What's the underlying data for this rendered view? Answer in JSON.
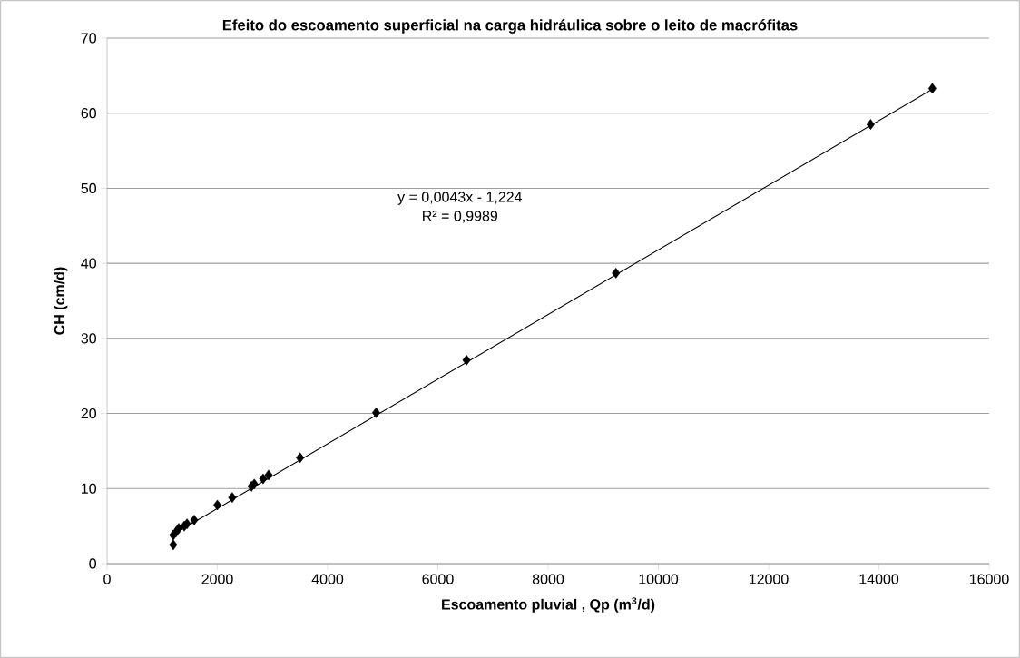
{
  "chart_data": {
    "type": "scatter",
    "title": "Efeito do escoamento superficial na carga hidráulica sobre o leito de macrófitas",
    "xlabel": "Escoamento pluvial , Qp (m$^{3}$/d)",
    "ylabel": "CH (cm/d)",
    "annotations": [
      "y = 0,0043x - 1,224",
      "R² = 0,9989"
    ],
    "series": [
      {
        "color": "#000000",
        "marker": "diamond",
        "x": [
          1200,
          1200,
          1250,
          1300,
          1400,
          1450,
          1580,
          2000,
          2270,
          2620,
          2670,
          2830,
          2930,
          3500,
          4880,
          6520,
          9230,
          13850,
          14970
        ],
        "values": [
          2.5,
          3.8,
          4.2,
          4.7,
          5.0,
          5.3,
          5.8,
          7.8,
          8.8,
          10.3,
          10.6,
          11.3,
          11.8,
          14.1,
          20.1,
          27.1,
          38.7,
          58.5,
          63.3
        ]
      },
      {
        "type": "line",
        "color": "#000000",
        "marker": "none",
        "line_style": "solid",
        "x": [
          1200,
          14970
        ],
        "values": [
          3.9,
          63.2
        ]
      }
    ],
    "xlim": [
      0,
      16000
    ],
    "xticks": [
      0,
      2000,
      4000,
      6000,
      8000,
      10000,
      12000,
      14000,
      16000
    ],
    "ylim": [
      0,
      70
    ],
    "yticks": [
      0,
      10,
      20,
      30,
      40,
      50,
      60,
      70
    ],
    "grid": "y"
  }
}
